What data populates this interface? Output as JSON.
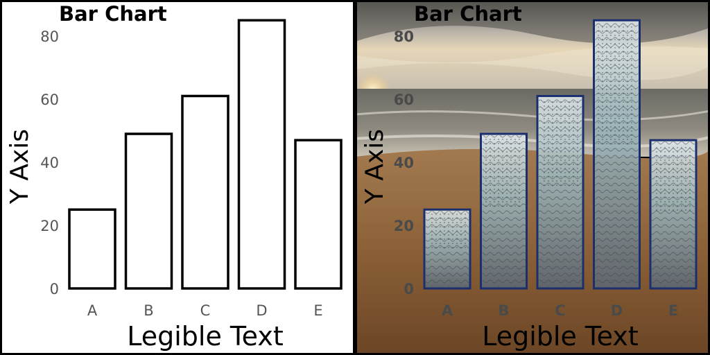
{
  "chart_data": [
    {
      "type": "bar",
      "title": "Bar Chart",
      "xlabel": "Legible Text",
      "ylabel": "Y Axis",
      "categories": [
        "A",
        "B",
        "C",
        "D",
        "E"
      ],
      "values": [
        25,
        49,
        61,
        85,
        47
      ],
      "ylim": [
        0,
        88
      ],
      "yticks": [
        "0",
        "20",
        "40",
        "60",
        "80"
      ],
      "grid": false,
      "style": "outlined bars on white background",
      "colors": {
        "bar_fill": "#ffffff",
        "bar_stroke": "#000000",
        "tick_text": "#555555"
      }
    },
    {
      "type": "bar",
      "title": "Bar Chart",
      "xlabel": "Legible Text",
      "ylabel": "Y Axis",
      "categories": [
        "A",
        "B",
        "C",
        "D",
        "E"
      ],
      "values": [
        25,
        49,
        61,
        85,
        47
      ],
      "ylim": [
        0,
        88
      ],
      "yticks": [
        "0",
        "20",
        "40",
        "60",
        "80"
      ],
      "grid": false,
      "style": "textured glassy bars over a beach photograph",
      "colors": {
        "bar_stroke": "#1b2f6e",
        "tick_text": "#4a4a4a",
        "sky": "#a9a39a",
        "sea": "#6f6d66",
        "sand": "#8a5f35"
      }
    }
  ]
}
